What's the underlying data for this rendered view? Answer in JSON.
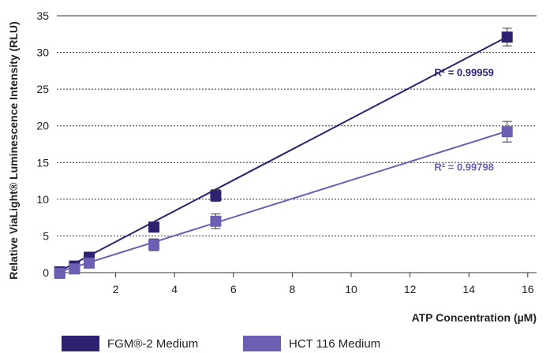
{
  "chart_data": {
    "type": "scatter",
    "xlabel": "ATP Concentration (µM)",
    "ylabel": "Relative ViaLight® Luminescence Intensity (RLU)",
    "xlim": [
      0,
      16.3
    ],
    "ylim": [
      0,
      35
    ],
    "xticks": [
      2,
      4,
      6,
      8,
      10,
      12,
      14,
      16
    ],
    "yticks": [
      0,
      5,
      10,
      15,
      20,
      25,
      30,
      35
    ],
    "grid": "horizontal dotted",
    "legend_position": "bottom",
    "series": [
      {
        "name": "FGM®-2 Medium",
        "color": "#2e2270",
        "x": [
          0.1,
          0.6,
          1.1,
          3.3,
          5.4,
          15.3
        ],
        "y": [
          0.1,
          0.9,
          2.1,
          6.2,
          10.5,
          32.1
        ],
        "error": [
          0.2,
          0.3,
          0.3,
          0.4,
          0.8,
          1.2
        ],
        "fit": {
          "slope": 2.1,
          "intercept": 0.0
        },
        "r2_label": "R² = 0.99959"
      },
      {
        "name": "HCT 116 Medium",
        "color": "#6b5fb3",
        "x": [
          0.1,
          0.6,
          1.1,
          3.3,
          5.4,
          15.3
        ],
        "y": [
          -0.1,
          0.5,
          1.3,
          3.8,
          7.0,
          19.2
        ],
        "error": [
          0.2,
          0.3,
          0.3,
          0.8,
          1.0,
          1.4
        ],
        "fit": {
          "slope": 1.26,
          "intercept": 0.0
        },
        "r2_label": "R² = 0.99798"
      }
    ]
  }
}
